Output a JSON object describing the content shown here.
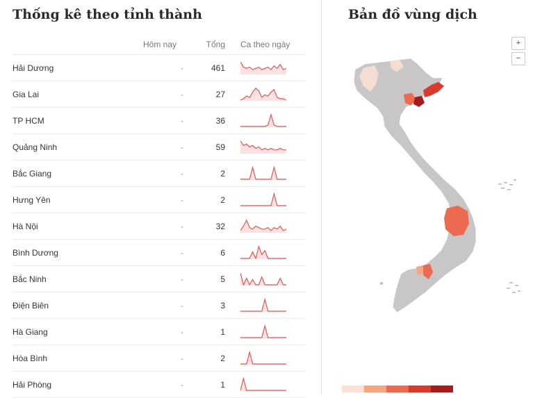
{
  "stats": {
    "title": "Thống kê theo tỉnh thành",
    "columns": {
      "today": "Hôm nay",
      "total": "Tổng",
      "daily": "Ca theo ngày"
    },
    "rows": [
      {
        "name": "Hải Dương",
        "today": "-",
        "total": "461",
        "spark": [
          9,
          5,
          4,
          5,
          3,
          4,
          5,
          3,
          4,
          5,
          3,
          6,
          4,
          7,
          3,
          4
        ]
      },
      {
        "name": "Gia Lai",
        "today": "-",
        "total": "27",
        "spark": [
          0,
          1,
          3,
          2,
          6,
          9,
          7,
          2,
          4,
          3,
          6,
          8,
          2,
          1,
          1,
          0
        ]
      },
      {
        "name": "TP HCM",
        "today": "-",
        "total": "36",
        "spark": [
          0,
          0,
          0,
          0,
          0,
          0,
          0,
          0,
          0,
          1,
          9,
          1,
          0,
          0,
          0,
          0
        ]
      },
      {
        "name": "Quảng Ninh",
        "today": "-",
        "total": "59",
        "spark": [
          8,
          5,
          6,
          4,
          5,
          3,
          4,
          2,
          3,
          2,
          3,
          2,
          2,
          3,
          2,
          2
        ]
      },
      {
        "name": "Bắc Giang",
        "today": "-",
        "total": "2",
        "spark": [
          0,
          0,
          0,
          0,
          9,
          0,
          0,
          0,
          0,
          0,
          0,
          9,
          0,
          0,
          0,
          0
        ]
      },
      {
        "name": "Hưng Yên",
        "today": "-",
        "total": "2",
        "spark": [
          0,
          0,
          0,
          0,
          0,
          0,
          0,
          0,
          0,
          0,
          0,
          9,
          0,
          0,
          0,
          0
        ]
      },
      {
        "name": "Hà Nội",
        "today": "-",
        "total": "32",
        "spark": [
          1,
          4,
          8,
          3,
          2,
          4,
          3,
          2,
          2,
          3,
          1,
          3,
          2,
          4,
          1,
          2
        ]
      },
      {
        "name": "Bình Dương",
        "today": "-",
        "total": "6",
        "spark": [
          0,
          0,
          0,
          0,
          5,
          0,
          9,
          3,
          6,
          0,
          0,
          0,
          0,
          0,
          0,
          0
        ]
      },
      {
        "name": "Bắc Ninh",
        "today": "-",
        "total": "5",
        "spark": [
          9,
          0,
          5,
          0,
          4,
          0,
          0,
          6,
          0,
          0,
          0,
          0,
          0,
          5,
          0,
          0
        ]
      },
      {
        "name": "Điện Biên",
        "today": "-",
        "total": "3",
        "spark": [
          0,
          0,
          0,
          0,
          0,
          0,
          0,
          0,
          9,
          0,
          0,
          0,
          0,
          0,
          0,
          0
        ]
      },
      {
        "name": "Hà Giang",
        "today": "-",
        "total": "1",
        "spark": [
          0,
          0,
          0,
          0,
          0,
          0,
          0,
          0,
          9,
          0,
          0,
          0,
          0,
          0,
          0,
          0
        ]
      },
      {
        "name": "Hòa Bình",
        "today": "-",
        "total": "2",
        "spark": [
          0,
          0,
          0,
          9,
          0,
          0,
          0,
          0,
          0,
          0,
          0,
          0,
          0,
          0,
          0,
          0
        ]
      },
      {
        "name": "Hải Phòng",
        "today": "-",
        "total": "1",
        "spark": [
          0,
          9,
          0,
          0,
          0,
          0,
          0,
          0,
          0,
          0,
          0,
          0,
          0,
          0,
          0,
          0
        ]
      }
    ]
  },
  "map": {
    "title": "Bản đồ vùng dịch",
    "zoom_in": "+",
    "zoom_out": "−",
    "legend_colors": [
      "#fde0d6",
      "#f4a582",
      "#ec6a4f",
      "#d93a2e",
      "#a51c1c"
    ]
  },
  "colors": {
    "spark_line": "#d95a5a",
    "spark_fill": "#fbe1e1",
    "land": "#c8c6c6"
  }
}
